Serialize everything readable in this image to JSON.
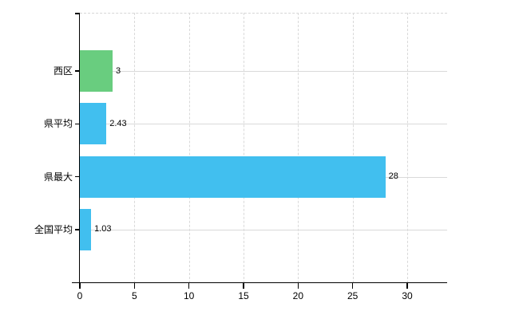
{
  "chart_data": {
    "type": "bar",
    "orientation": "horizontal",
    "title": "",
    "categories": [
      "西区",
      "県平均",
      "県最大",
      "全国平均"
    ],
    "values": [
      3,
      2.43,
      28,
      1.03
    ],
    "value_labels": [
      "3",
      "2.43",
      "28",
      "1.03"
    ],
    "bar_colors": [
      "#69cd7f",
      "#41bfef",
      "#41bfef",
      "#41bfef"
    ],
    "x_tick_labels": [
      "0",
      "5",
      "10",
      "15",
      "20",
      "25",
      "30"
    ],
    "x_tick_values": [
      0,
      5,
      10,
      15,
      20,
      25,
      30
    ],
    "xlim": [
      0,
      33.66
    ],
    "grid": true,
    "legend": false,
    "colors": {
      "grid": "#d9d9d9",
      "axis": "#000000",
      "text": "#000000",
      "background": "#ffffff"
    }
  }
}
